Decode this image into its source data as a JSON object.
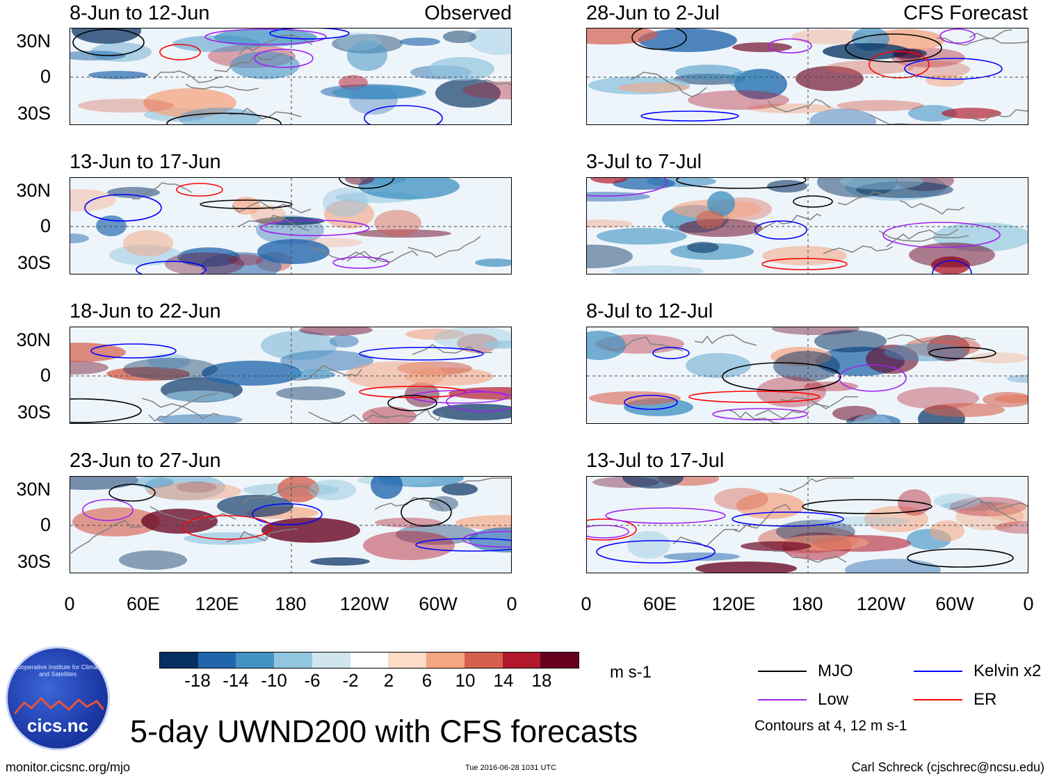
{
  "panels_left": [
    {
      "title": "8-Jun to 12-Jun",
      "label": "Observed"
    },
    {
      "title": "13-Jun to 17-Jun",
      "label": ""
    },
    {
      "title": "18-Jun to 22-Jun",
      "label": ""
    },
    {
      "title": "23-Jun to 27-Jun",
      "label": ""
    }
  ],
  "panels_right": [
    {
      "title": "28-Jun to 2-Jul",
      "label": "CFS Forecast"
    },
    {
      "title": "3-Jul to 7-Jul",
      "label": ""
    },
    {
      "title": "8-Jul to 12-Jul",
      "label": ""
    },
    {
      "title": "13-Jul to 17-Jul",
      "label": ""
    }
  ],
  "lat_labels": [
    "30N",
    "0",
    "30S"
  ],
  "lon_labels": [
    "0",
    "60E",
    "120E",
    "180",
    "120W",
    "60W",
    "0"
  ],
  "colorbar": {
    "colors": [
      "#053061",
      "#2166ac",
      "#4393c3",
      "#92c5de",
      "#d1e5f0",
      "#ffffff",
      "#fddbc7",
      "#f4a582",
      "#d6604d",
      "#b2182b",
      "#67001f"
    ],
    "ticks": [
      "-18",
      "-14",
      "-10",
      "-6",
      "-2",
      "2",
      "6",
      "10",
      "14",
      "18"
    ],
    "units": "m s-1"
  },
  "legend": {
    "items": [
      {
        "label": "MJO",
        "color": "#000000"
      },
      {
        "label": "Kelvin x2",
        "color": "#0000ff"
      },
      {
        "label": "Low",
        "color": "#a020f0"
      },
      {
        "label": "ER",
        "color": "#ff0000"
      }
    ],
    "note": "Contours at 4, 12 m s-1"
  },
  "logo_text": "cics.nc",
  "logo_ring_text": "Cooperative Institute for Climate and Satellites",
  "main_title": "5-day UWND200 with CFS forecasts",
  "footer": {
    "left": "monitor.cicsnc.org/mjo",
    "center": "Tue 2016-06-28 1031 UTC",
    "right": "Carl Schreck (cjschrec@ncsu.edu)"
  }
}
